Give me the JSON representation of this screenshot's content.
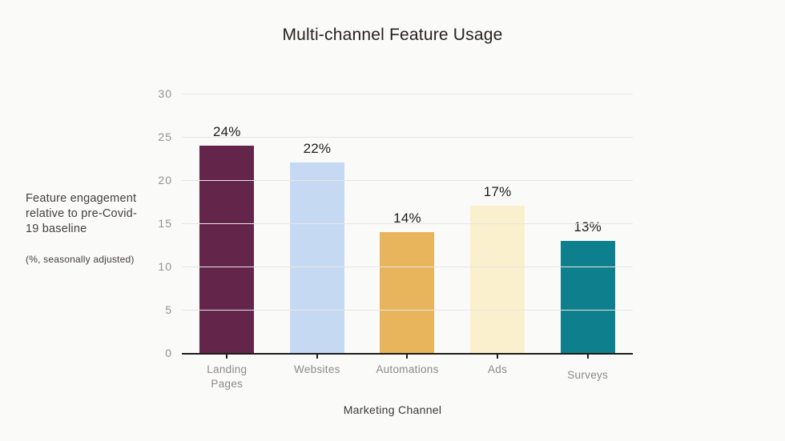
{
  "chart_data": {
    "type": "bar",
    "title": "Multi-channel Feature Usage",
    "categories": [
      "Landing Pages",
      "Websites",
      "Automations",
      "Ads",
      "Surveys"
    ],
    "tick_labels": [
      "Landing\nPages",
      "Websites",
      "Automations",
      "Ads",
      "Surveys"
    ],
    "values": [
      24,
      22,
      14,
      17,
      13
    ],
    "value_labels": [
      "24%",
      "22%",
      "14%",
      "17%",
      "13%"
    ],
    "bar_colors": [
      "#63254a",
      "#c6d9f2",
      "#e8b55c",
      "#faf0cd",
      "#0e7f8c"
    ],
    "xlabel": "Marketing Channel",
    "ylabel": "Feature engagement relative to pre-Covid-19 baseline",
    "ylabel_note": "(%, seasonally adjusted)",
    "ylim": [
      0,
      30
    ],
    "yticks": [
      0,
      5,
      10,
      15,
      20,
      25,
      30
    ],
    "grid": "horizontal",
    "legend": "none"
  },
  "colors": {
    "background": "#fafaf9",
    "gridline": "#e7e5e2",
    "axis_line": "#1d1c1a",
    "tick_label_text": "#96928c",
    "category_label_text": "#8d8a85",
    "value_label_text": "#1d1c1a",
    "title_text": "#26221d",
    "annotation_text": "#45413c"
  }
}
